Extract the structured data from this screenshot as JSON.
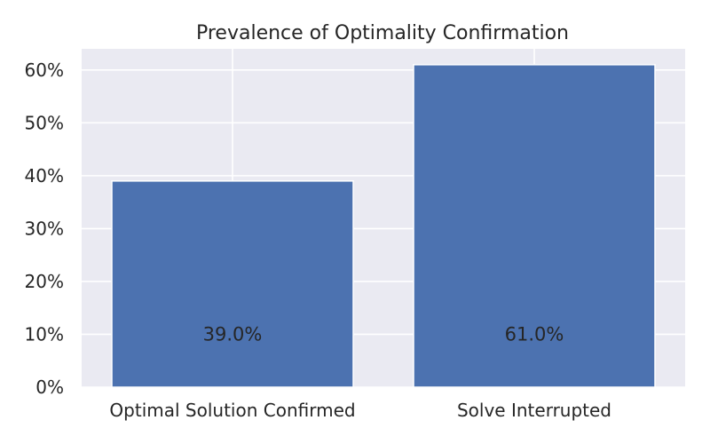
{
  "chart_data": {
    "type": "bar",
    "title": "Prevalence of Optimality Confirmation",
    "xlabel": "",
    "ylabel": "",
    "categories": [
      "Optimal Solution Confirmed",
      "Solve Interrupted"
    ],
    "values": [
      0.39,
      0.61
    ],
    "data_labels": [
      "39.0%",
      "61.0%"
    ],
    "ylim": [
      0,
      0.64
    ],
    "yticks": [
      0,
      0.1,
      0.2,
      0.3,
      0.4,
      0.5,
      0.6
    ],
    "ytick_labels": [
      "0%",
      "10%",
      "20%",
      "30%",
      "40%",
      "50%",
      "60%"
    ],
    "grid": true,
    "legend": "none",
    "colors": {
      "bar": "#4c72b0",
      "plot_background": "#eaeaf2",
      "grid": "#ffffff",
      "text": "#262626"
    }
  }
}
